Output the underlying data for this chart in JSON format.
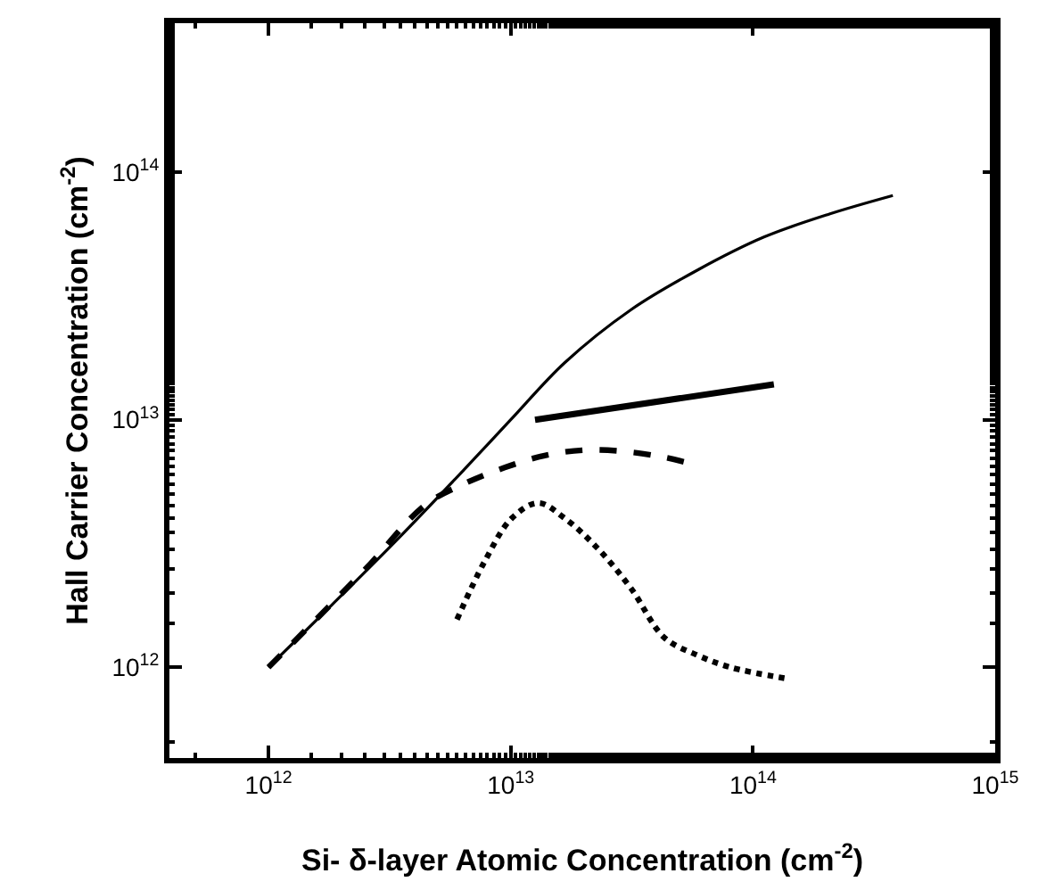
{
  "chart_data": {
    "type": "line",
    "xlabel": "Si- δ-layer Atomic Concentration (cm$^{-2}$)",
    "ylabel": "Hall Carrier Concentration (cm$^{-2}$)",
    "log": "xy",
    "grid": false,
    "marker": "none",
    "xlim": [
      390000000000.0,
      1000000000000000.0
    ],
    "ylim": [
      430000000000.0,
      400000000000000.0
    ],
    "xticks": [
      {
        "value": 1000000000000.0,
        "label": "10$^{12}$"
      },
      {
        "value": 10000000000000.0,
        "label": "10$^{13}$"
      },
      {
        "value": 100000000000000.0,
        "label": "10$^{14}$"
      },
      {
        "value": 1000000000000000.0,
        "label": "10$^{15}$"
      }
    ],
    "yticks": [
      {
        "value": 1000000000000.0,
        "label": "10$^{12}$"
      },
      {
        "value": 10000000000000.0,
        "label": "10$^{13}$"
      },
      {
        "value": 100000000000000.0,
        "label": "10$^{14}$"
      }
    ],
    "series": [
      {
        "color": "#000000",
        "line_style": "solid",
        "x": [
          1000000000000.0,
          1830000000000.0,
          3440000000000.0,
          6470000000000.0,
          10000000000000.0,
          16700000000000.0,
          31300000000000.0,
          58900000000000.0,
          111000000000000.0,
          208000000000000.0,
          378000000000000.0
        ],
        "values": [
          1000000000000.0,
          1790000000000.0,
          3320000000000.0,
          6340000000000.0,
          10000000000000.0,
          17000000000000.0,
          27800000000000.0,
          40200000000000.0,
          54700000000000.0,
          67900000000000.0,
          80500000000000.0
        ]
      },
      {
        "color": "#000000",
        "line_style": "solid",
        "x": [
          12600000000000.0,
          122000000000000.0
        ],
        "values": [
          10000000000000.0,
          13900000000000.0
        ]
      },
      {
        "color": "#000000",
        "line_style": "dashed",
        "x": [
          1000000000000.0,
          2510000000000.0,
          4430000000000.0,
          6470000000000.0,
          9440000000000.0,
          13800000000000.0,
          20100000000000.0,
          29400000000000.0,
          43000000000000.0,
          55200000000000.0
        ],
        "values": [
          1000000000000.0,
          2490000000000.0,
          4520000000000.0,
          5530000000000.0,
          6410000000000.0,
          7170000000000.0,
          7540000000000.0,
          7450000000000.0,
          7050000000000.0,
          6660000000000.0
        ]
      },
      {
        "color": "#000000",
        "line_style": "dotted",
        "x": [
          6000000000000.0,
          7810000000000.0,
          10100000000000.0,
          13000000000000.0,
          16700000000000.0,
          22800000000000.0,
          31300000000000.0,
          43000000000000.0,
          58900000000000.0,
          80700000000000.0,
          142000000000000.0
        ],
        "values": [
          1560000000000.0,
          2680000000000.0,
          4000000000000.0,
          4610000000000.0,
          4000000000000.0,
          3030000000000.0,
          2090000000000.0,
          1320000000000.0,
          1120000000000.0,
          1000000000000.0,
          896000000000.0
        ]
      }
    ]
  }
}
